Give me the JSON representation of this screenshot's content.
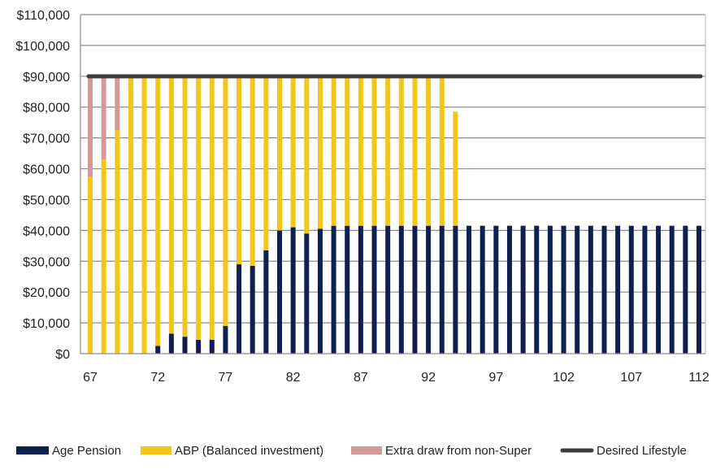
{
  "chart_data": {
    "type": "bar",
    "stacked": true,
    "x": [
      67,
      68,
      69,
      70,
      71,
      72,
      73,
      74,
      75,
      76,
      77,
      78,
      79,
      80,
      81,
      82,
      83,
      84,
      85,
      86,
      87,
      88,
      89,
      90,
      91,
      92,
      93,
      94,
      95,
      96,
      97,
      98,
      99,
      100,
      101,
      102,
      103,
      104,
      105,
      106,
      107,
      108,
      109,
      110,
      111,
      112
    ],
    "x_tick_labels": [
      "67",
      "72",
      "77",
      "82",
      "87",
      "92",
      "97",
      "102",
      "107",
      "112"
    ],
    "y_tick_labels": [
      "$0",
      "$10,000",
      "$20,000",
      "$30,000",
      "$40,000",
      "$50,000",
      "$60,000",
      "$70,000",
      "$80,000",
      "$90,000",
      "$100,000",
      "$110,000"
    ],
    "ylim": [
      0,
      110000
    ],
    "grid": true,
    "legend_position": "bottom",
    "series": [
      {
        "name": "Age Pension",
        "color": "#0f1f4f",
        "values": [
          0,
          0,
          0,
          0,
          0,
          2500,
          6500,
          5500,
          4500,
          4500,
          9000,
          29000,
          28500,
          33500,
          40000,
          41000,
          39000,
          40500,
          41500,
          41500,
          41500,
          41500,
          41500,
          41500,
          41500,
          41500,
          41500,
          41500,
          41500,
          41500,
          41500,
          41500,
          41500,
          41500,
          41500,
          41500,
          41500,
          41500,
          41500,
          41500,
          41500,
          41500,
          41500,
          41500,
          41500,
          41500
        ]
      },
      {
        "name": "ABP (Balanced investment)",
        "color": "#f5c518",
        "values": [
          57500,
          63000,
          72500,
          90000,
          90000,
          87500,
          83500,
          84500,
          85500,
          85500,
          81000,
          61000,
          61500,
          56500,
          50000,
          49000,
          51000,
          49500,
          48500,
          48500,
          48500,
          48500,
          48500,
          48500,
          48500,
          48500,
          48500,
          37000,
          0,
          0,
          0,
          0,
          0,
          0,
          0,
          0,
          0,
          0,
          0,
          0,
          0,
          0,
          0,
          0,
          0,
          0
        ]
      },
      {
        "name": "Extra draw from non-Super",
        "color": "#d4999a",
        "values": [
          32500,
          27000,
          17500,
          0,
          0,
          0,
          0,
          0,
          0,
          0,
          0,
          0,
          0,
          0,
          0,
          0,
          0,
          0,
          0,
          0,
          0,
          0,
          0,
          0,
          0,
          0,
          0,
          0,
          0,
          0,
          0,
          0,
          0,
          0,
          0,
          0,
          0,
          0,
          0,
          0,
          0,
          0,
          0,
          0,
          0,
          0
        ]
      },
      {
        "name": "Desired Lifestyle",
        "type": "line",
        "color": "#3c3c3c",
        "value": 90000,
        "x_range": [
          67,
          112
        ]
      }
    ]
  }
}
